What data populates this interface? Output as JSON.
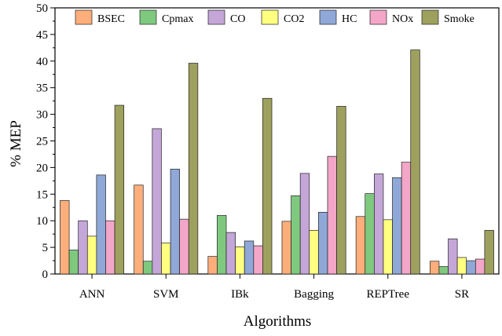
{
  "chart_data": {
    "type": "bar",
    "xlabel": "Algorithms",
    "ylabel": "% MEP",
    "ylim": [
      0,
      50
    ],
    "yticks": [
      0,
      5,
      10,
      15,
      20,
      25,
      30,
      35,
      40,
      45,
      50
    ],
    "grid": false,
    "legend_position": "top",
    "categories": [
      "ANN",
      "SVM",
      "IBk",
      "Bagging",
      "REPTree",
      "SR"
    ],
    "series": [
      {
        "name": "BSEC",
        "color": "#FDAE7B",
        "values": [
          13.8,
          16.7,
          3.3,
          9.9,
          10.8,
          2.4
        ]
      },
      {
        "name": "Cpmax",
        "color": "#7FC97F",
        "values": [
          4.5,
          2.4,
          11.0,
          14.7,
          15.1,
          1.4
        ]
      },
      {
        "name": "CO",
        "color": "#C4A6D8",
        "values": [
          10.0,
          27.3,
          7.8,
          18.9,
          18.8,
          6.6
        ]
      },
      {
        "name": "CO2",
        "color": "#FFFF80",
        "values": [
          7.1,
          5.8,
          5.1,
          8.2,
          10.2,
          3.1
        ]
      },
      {
        "name": "HC",
        "color": "#8FA8D8",
        "values": [
          18.6,
          19.7,
          6.2,
          11.6,
          18.1,
          2.5
        ]
      },
      {
        "name": "NOx",
        "color": "#F4A6C8",
        "values": [
          10.0,
          10.3,
          5.3,
          22.1,
          21.0,
          2.8
        ]
      },
      {
        "name": "Smoke",
        "color": "#9EA05E",
        "values": [
          31.7,
          39.6,
          33.0,
          31.5,
          42.1,
          8.2
        ]
      }
    ]
  }
}
